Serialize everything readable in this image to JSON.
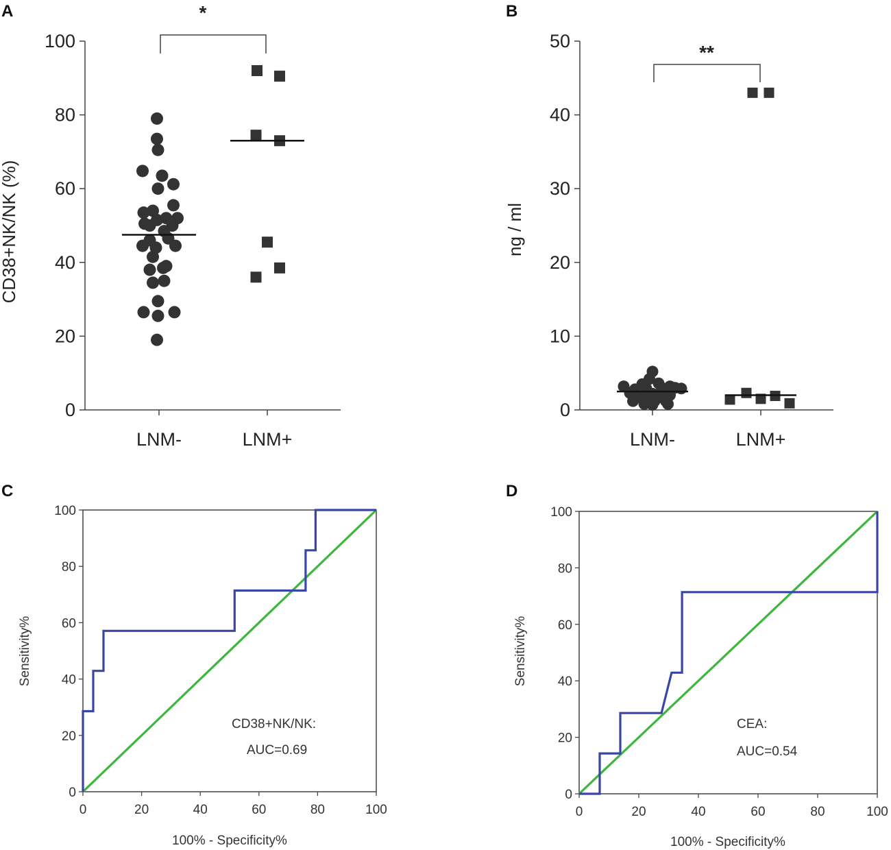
{
  "colors": {
    "marker": "#333333",
    "axis": "#444444",
    "roc_curve": "#3a45a8",
    "reference_line": "#3cb63c"
  },
  "chart_data": [
    {
      "panel": "A",
      "type": "scatter",
      "categories": [
        "LNM-",
        "LNM+"
      ],
      "ylabel": "CD38+NK/NK (%)",
      "ylim": [
        0,
        100
      ],
      "yticks": [
        "0",
        "20",
        "40",
        "60",
        "80",
        "100"
      ],
      "significance": "*",
      "series": [
        {
          "name": "LNM-",
          "marker": "circle",
          "median": 47.5,
          "points": [
            [
              -0.02,
              79
            ],
            [
              -0.02,
              73.5
            ],
            [
              -0.01,
              70.5
            ],
            [
              -0.16,
              64.8
            ],
            [
              0.03,
              63.5
            ],
            [
              -0.01,
              60
            ],
            [
              0.14,
              61.2
            ],
            [
              0.14,
              55.5
            ],
            [
              -0.15,
              53.5
            ],
            [
              -0.06,
              54
            ],
            [
              0.07,
              52
            ],
            [
              -0.14,
              50.5
            ],
            [
              -0.02,
              51.5
            ],
            [
              -0.09,
              50
            ],
            [
              0.13,
              50
            ],
            [
              0.18,
              52
            ],
            [
              0.05,
              48.5
            ],
            [
              -0.09,
              46
            ],
            [
              0.09,
              46.5
            ],
            [
              -0.16,
              44.5
            ],
            [
              0.16,
              44.5
            ],
            [
              -0.03,
              44
            ],
            [
              -0.06,
              41.5
            ],
            [
              0.04,
              38.5
            ],
            [
              0.07,
              39
            ],
            [
              -0.09,
              38
            ],
            [
              -0.06,
              34.5
            ],
            [
              0.05,
              35
            ],
            [
              -0.01,
              29.5
            ],
            [
              -0.15,
              26.5
            ],
            [
              -0.01,
              25.5
            ],
            [
              0.15,
              26.5
            ],
            [
              -0.02,
              19
            ]
          ]
        },
        {
          "name": "LNM+",
          "marker": "square",
          "median": 73,
          "points": [
            [
              -0.1,
              92
            ],
            [
              0.12,
              90.5
            ],
            [
              -0.11,
              74.5
            ],
            [
              0.12,
              73
            ],
            [
              0.0,
              45.5
            ],
            [
              0.12,
              38.5
            ],
            [
              -0.11,
              36
            ]
          ]
        }
      ]
    },
    {
      "panel": "B",
      "type": "scatter",
      "categories": [
        "LNM-",
        "LNM+"
      ],
      "ylabel": "ng / ml",
      "ylim": [
        0,
        50
      ],
      "yticks": [
        "0",
        "10",
        "20",
        "30",
        "40",
        "50"
      ],
      "significance": "**",
      "series": [
        {
          "name": "LNM-",
          "marker": "circle",
          "median": 2.5,
          "points": [
            [
              0.0,
              5.2
            ],
            [
              -0.03,
              4.2
            ],
            [
              0.06,
              3.6
            ],
            [
              -0.1,
              3.5
            ],
            [
              -0.28,
              3.2
            ],
            [
              0.17,
              3.2
            ],
            [
              0.22,
              3.0
            ],
            [
              -0.17,
              2.8
            ],
            [
              -0.06,
              2.9
            ],
            [
              0.09,
              3.0
            ],
            [
              0.28,
              2.9
            ],
            [
              -0.22,
              2.3
            ],
            [
              0.0,
              2.2
            ],
            [
              0.11,
              2.4
            ],
            [
              -0.13,
              1.8
            ],
            [
              -0.04,
              1.6
            ],
            [
              0.06,
              1.7
            ],
            [
              0.17,
              2.0
            ],
            [
              -0.19,
              1.2
            ],
            [
              0.02,
              1.2
            ],
            [
              0.13,
              1.2
            ],
            [
              -0.08,
              0.8
            ],
            [
              0.0,
              0.7
            ],
            [
              0.15,
              0.8
            ]
          ]
        },
        {
          "name": "LNM+",
          "marker": "square",
          "median": 2.0,
          "points": [
            [
              -0.08,
              43
            ],
            [
              0.08,
              43
            ],
            [
              -0.3,
              1.4
            ],
            [
              -0.14,
              2.3
            ],
            [
              0.0,
              1.5
            ],
            [
              0.14,
              1.9
            ],
            [
              0.28,
              0.9
            ]
          ]
        }
      ]
    },
    {
      "panel": "C",
      "type": "line",
      "title": "",
      "xlabel": "100% - Specificity%",
      "ylabel": "Sensitivity%",
      "xlim": [
        0,
        100
      ],
      "ylim": [
        0,
        100
      ],
      "xticks": [
        "0",
        "20",
        "40",
        "60",
        "80",
        "100"
      ],
      "yticks": [
        "0",
        "20",
        "40",
        "60",
        "80",
        "100"
      ],
      "annotation": [
        "CD38+NK/NK:",
        "AUC=0.69"
      ],
      "series": [
        {
          "name": "ROC",
          "x": [
            0,
            0,
            3.5,
            3.5,
            7,
            7,
            51.7,
            51.7,
            75.9,
            75.9,
            79.3,
            79.3,
            100
          ],
          "y": [
            0,
            28.6,
            28.6,
            42.9,
            42.9,
            57.1,
            57.1,
            71.4,
            71.4,
            85.7,
            85.7,
            100,
            100
          ]
        },
        {
          "name": "Reference",
          "x": [
            0,
            100
          ],
          "y": [
            0,
            100
          ]
        }
      ]
    },
    {
      "panel": "D",
      "type": "line",
      "title": "",
      "xlabel": "100% - Specificity%",
      "ylabel": "Sensitivity%",
      "xlim": [
        0,
        100
      ],
      "ylim": [
        0,
        100
      ],
      "xticks": [
        "0",
        "20",
        "40",
        "60",
        "80",
        "100"
      ],
      "yticks": [
        "0",
        "20",
        "40",
        "60",
        "80",
        "100"
      ],
      "annotation": [
        "CEA:",
        "AUC=0.54"
      ],
      "series": [
        {
          "name": "ROC",
          "x": [
            0,
            6.9,
            6.9,
            13.8,
            13.8,
            27.6,
            31,
            34.5,
            34.5,
            100,
            100
          ],
          "y": [
            0,
            0,
            14.3,
            14.3,
            28.6,
            28.6,
            42.9,
            42.9,
            71.4,
            71.4,
            100
          ]
        },
        {
          "name": "Reference",
          "x": [
            0,
            100
          ],
          "y": [
            0,
            100
          ]
        }
      ]
    }
  ]
}
